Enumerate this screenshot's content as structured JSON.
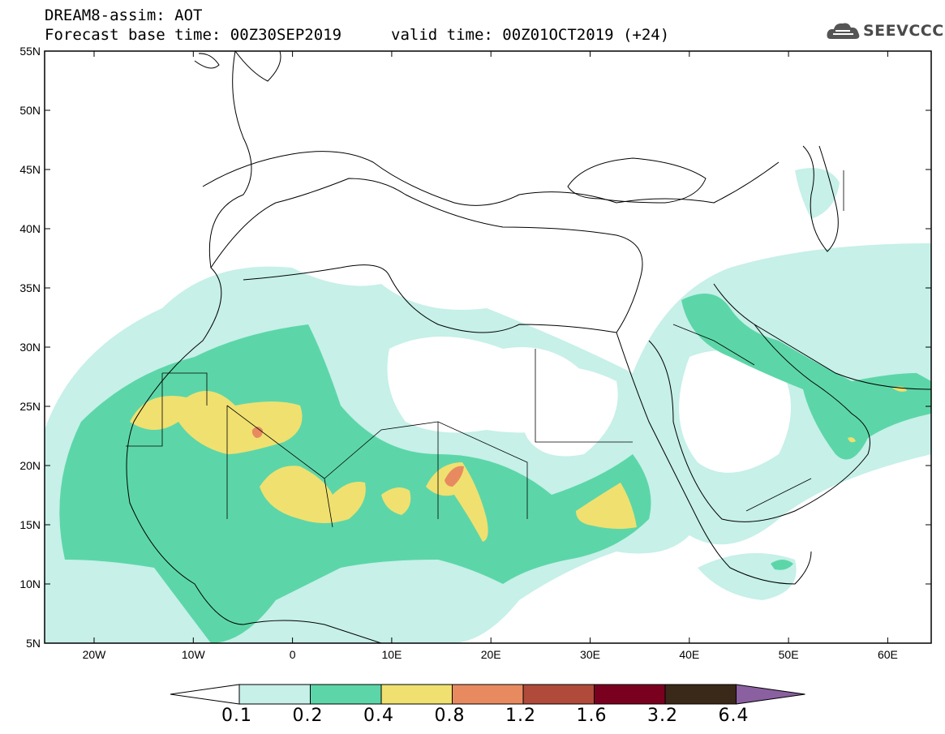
{
  "header": {
    "line1": "DREAM8-assim: AOT",
    "line2": "Forecast base time: 00Z30SEP2019",
    "valid": "valid time: 00Z01OCT2019 (+24)",
    "logo_text": "SEEVCCC"
  },
  "map": {
    "lat_labels": [
      "55N",
      "50N",
      "45N",
      "40N",
      "35N",
      "30N",
      "25N",
      "20N",
      "15N",
      "10N",
      "5N"
    ],
    "lon_labels": [
      "20W",
      "10W",
      "0",
      "10E",
      "20E",
      "30E",
      "40E",
      "50E",
      "60E"
    ]
  },
  "colorbar": {
    "levels": [
      "0.1",
      "0.2",
      "0.4",
      "0.8",
      "1.2",
      "1.6",
      "3.2",
      "6.4"
    ],
    "colors": [
      "#ffffff",
      "#c6f0e8",
      "#5cd6a8",
      "#f0e070",
      "#e88a60",
      "#b04a3a",
      "#7a0020",
      "#3a2818",
      "#8a60a0"
    ]
  }
}
